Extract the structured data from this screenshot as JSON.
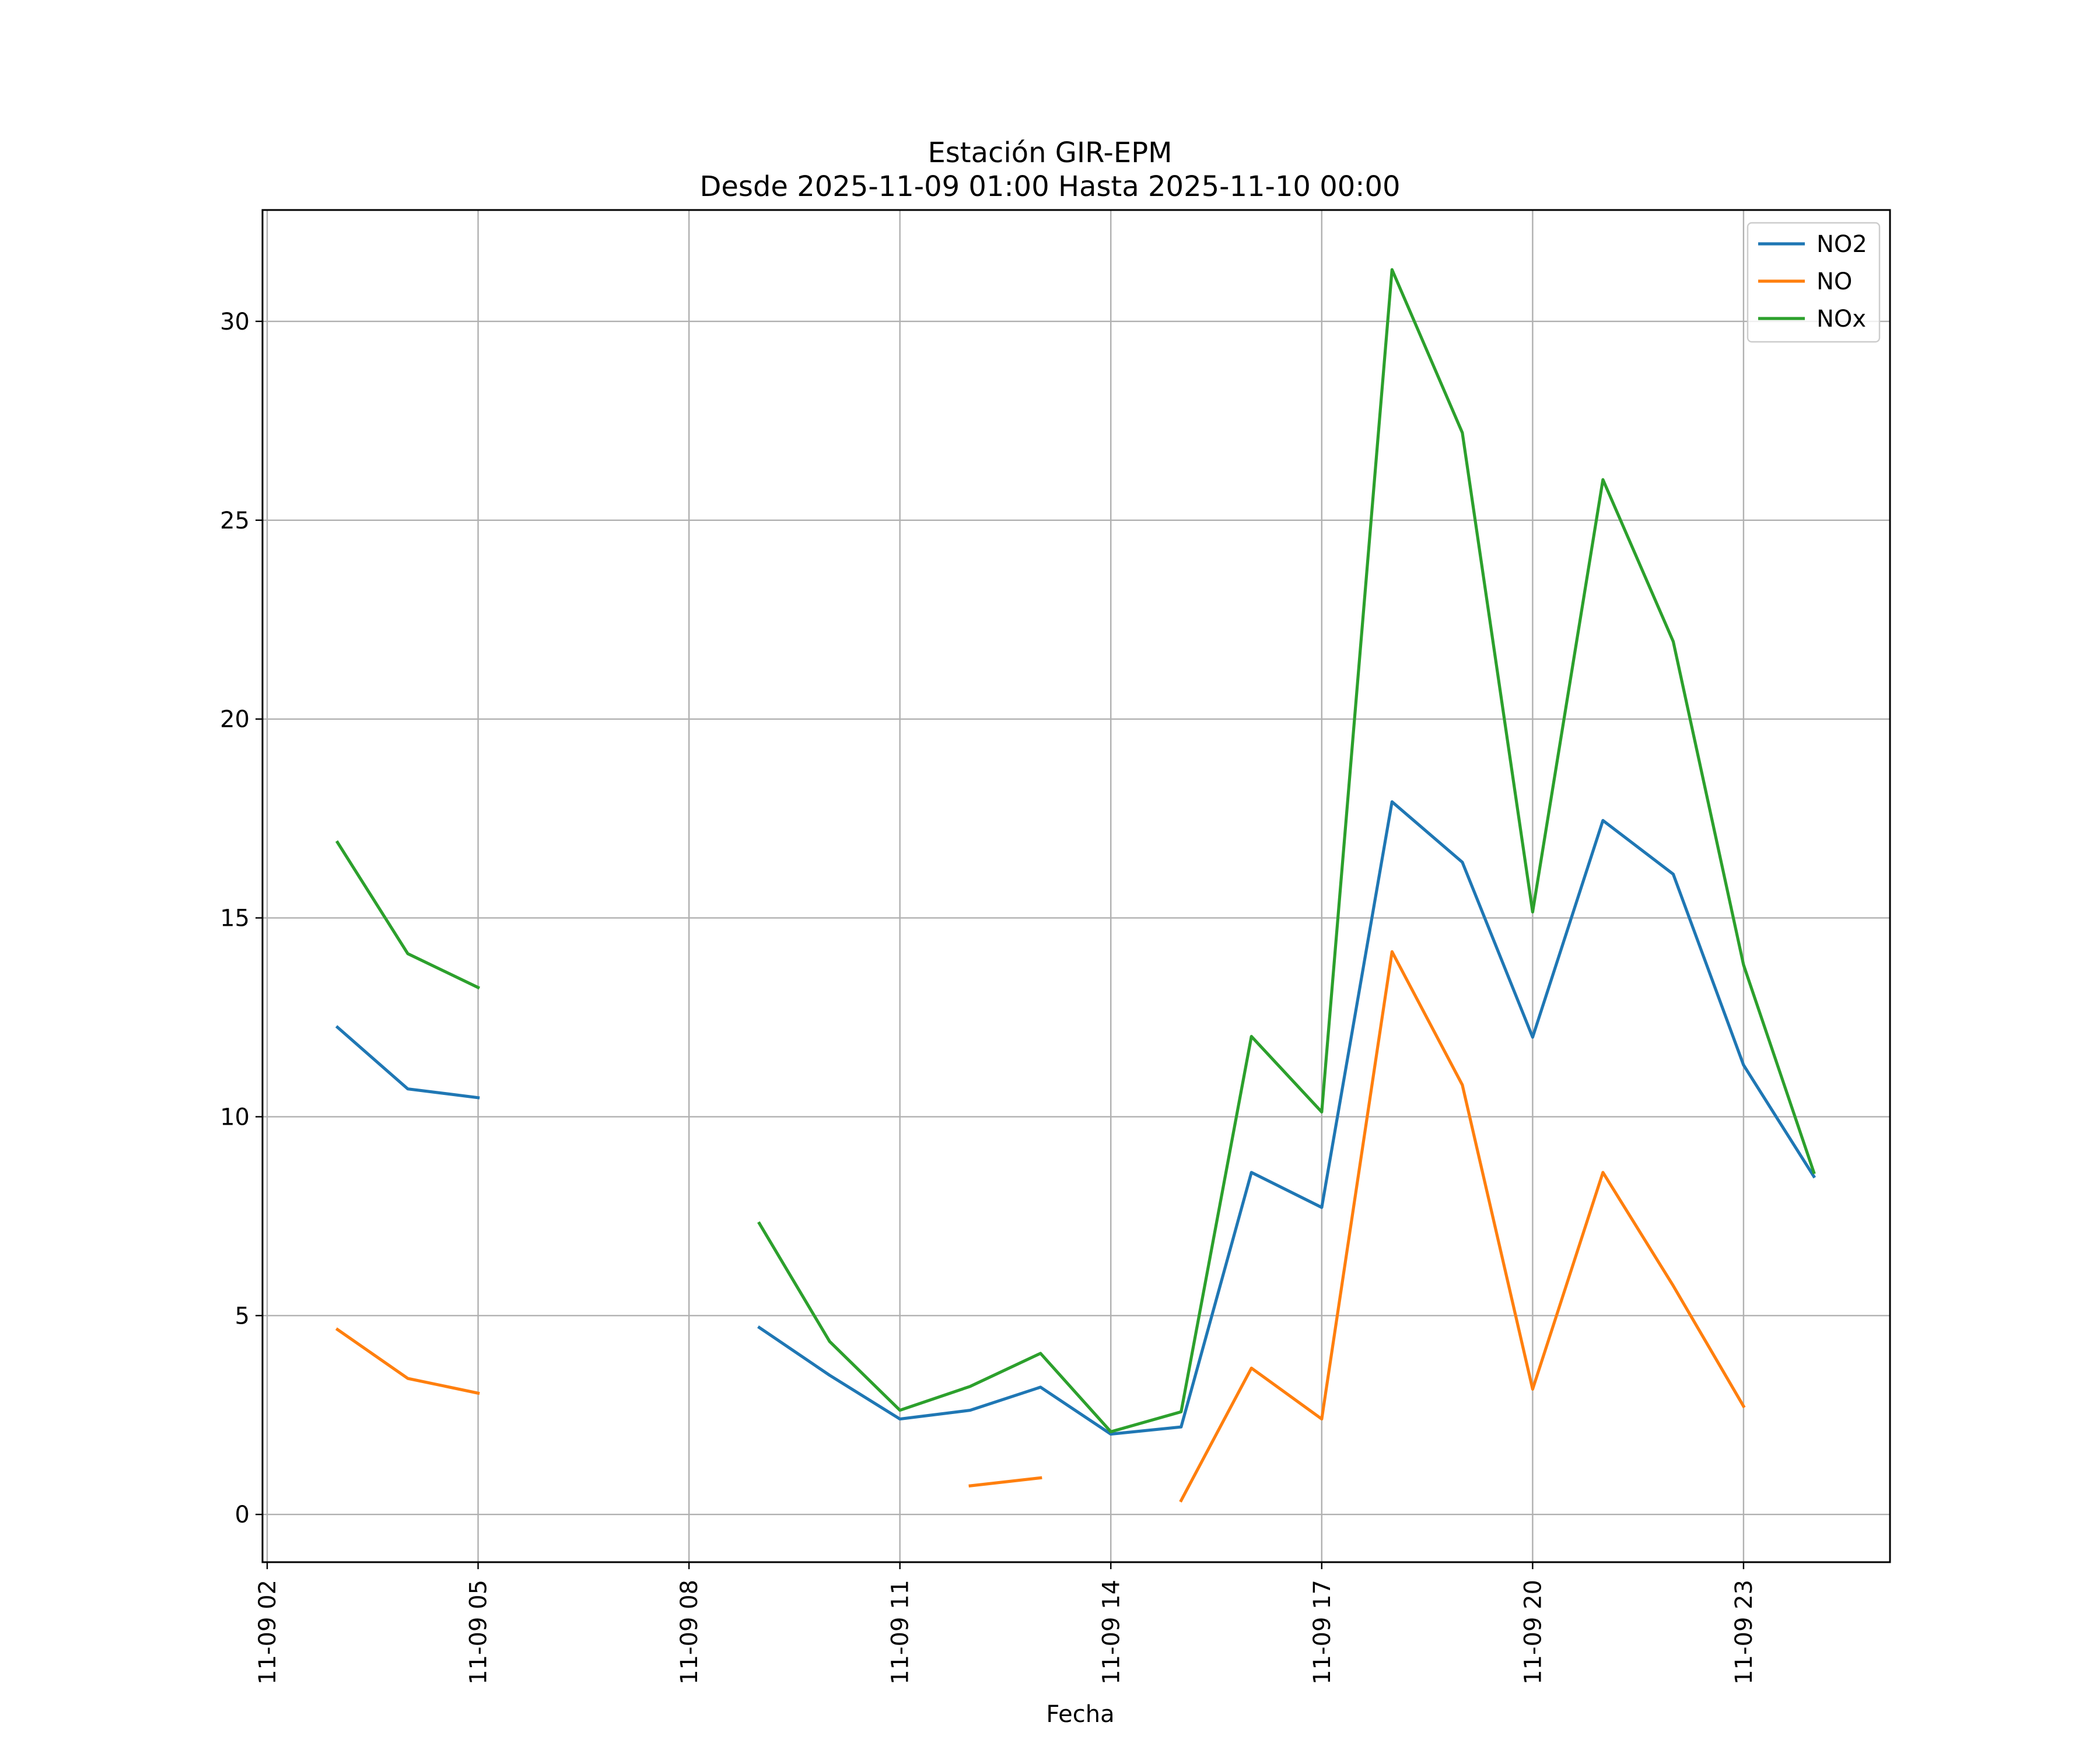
{
  "chart_data": {
    "type": "line",
    "title": "Estación GIR-EPM",
    "subtitle": "Desde 2025-11-09 01:00 Hasta 2025-11-10 00:00",
    "xlabel": "Fecha",
    "ylabel": "",
    "grid": true,
    "legend_position": "top-right",
    "x": [
      "2025-11-09 01:00",
      "2025-11-09 02:00",
      "2025-11-09 03:00",
      "2025-11-09 04:00",
      "2025-11-09 05:00",
      "2025-11-09 06:00",
      "2025-11-09 07:00",
      "2025-11-09 08:00",
      "2025-11-09 09:00",
      "2025-11-09 10:00",
      "2025-11-09 11:00",
      "2025-11-09 12:00",
      "2025-11-09 13:00",
      "2025-11-09 14:00",
      "2025-11-09 15:00",
      "2025-11-09 16:00",
      "2025-11-09 17:00",
      "2025-11-09 18:00",
      "2025-11-09 19:00",
      "2025-11-09 20:00",
      "2025-11-09 21:00",
      "2025-11-09 22:00",
      "2025-11-09 23:00",
      "2025-11-10 00:00"
    ],
    "xlim": [
      "2025-11-09 01:56",
      "2025-11-10 01:05"
    ],
    "xticks": [
      "2025-11-09 02:00",
      "2025-11-09 05:00",
      "2025-11-09 08:00",
      "2025-11-09 11:00",
      "2025-11-09 14:00",
      "2025-11-09 17:00",
      "2025-11-09 20:00",
      "2025-11-09 23:00"
    ],
    "xtick_labels": [
      "11-09 02",
      "11-09 05",
      "11-09 08",
      "11-09 11",
      "11-09 14",
      "11-09 17",
      "11-09 20",
      "11-09 23"
    ],
    "ylim": [
      -1.2,
      32.8
    ],
    "yticks": [
      0,
      5,
      10,
      15,
      20,
      25,
      30
    ],
    "ytick_labels": [
      "0",
      "5",
      "10",
      "15",
      "20",
      "25",
      "30"
    ],
    "series": [
      {
        "name": "NO2",
        "color": "#1f77b4",
        "values": [
          null,
          null,
          12.25,
          10.7,
          10.48,
          null,
          null,
          null,
          4.7,
          3.5,
          2.4,
          2.62,
          3.2,
          2.02,
          2.2,
          8.6,
          7.72,
          17.92,
          16.4,
          12.0,
          17.45,
          16.1,
          11.3,
          8.5
        ]
      },
      {
        "name": "NO",
        "color": "#ff7f0e",
        "values": [
          null,
          null,
          4.65,
          3.42,
          3.05,
          null,
          null,
          null,
          null,
          null,
          null,
          0.72,
          0.92,
          null,
          0.35,
          3.68,
          2.4,
          14.15,
          10.8,
          3.15,
          8.6,
          5.75,
          2.72,
          null
        ]
      },
      {
        "name": "NOx",
        "color": "#2ca02c",
        "values": [
          null,
          null,
          16.9,
          14.1,
          13.25,
          null,
          null,
          null,
          7.32,
          4.35,
          2.62,
          3.22,
          4.05,
          2.08,
          2.58,
          12.02,
          10.12,
          31.3,
          27.2,
          15.15,
          26.02,
          21.95,
          13.82,
          8.6
        ]
      }
    ]
  }
}
